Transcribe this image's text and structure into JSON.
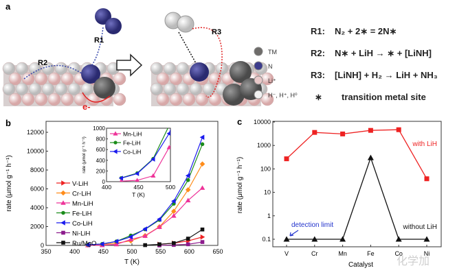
{
  "panel_a": {
    "label": "a",
    "arrow_labels": [
      "R1",
      "R2",
      "R3"
    ],
    "electron_label": "e-",
    "legend": [
      {
        "label": "TM",
        "color": "#6e6c6a"
      },
      {
        "label": "N",
        "color": "#3c3c8c"
      },
      {
        "label": "Li⁺",
        "color": "#e8c8c8"
      },
      {
        "label": "H⁻, H⁺, H⁰",
        "color": "#f2f2f2"
      }
    ],
    "reactions": [
      {
        "name": "R1:",
        "equation": "N₂ + 2∗ = 2N∗"
      },
      {
        "name": "R2:",
        "equation": "N∗ + LiH → ∗ + [LiNH]"
      },
      {
        "name": "R3:",
        "equation": "[LiNH] + H₂ → LiH + NH₃"
      },
      {
        "name": "∗",
        "equation": "transition metal site"
      }
    ]
  },
  "watermark": "化学加",
  "chart_data": [
    {
      "panel": "b",
      "type": "line",
      "xlabel": "T (K)",
      "ylabel": "rate (μmol g⁻¹ h⁻¹)",
      "xlim": [
        350,
        650
      ],
      "ylim": [
        0,
        12000
      ],
      "xticks": [
        350,
        400,
        450,
        500,
        550,
        600,
        650
      ],
      "yticks": [
        0,
        2000,
        4000,
        6000,
        8000,
        10000,
        12000
      ],
      "legend_position": "left",
      "series": [
        {
          "name": "V-LiH",
          "color": "#ee2222",
          "marker": "triangle-right",
          "x": [
            548,
            573,
            598,
            623
          ],
          "y": [
            120,
            240,
            480,
            890
          ]
        },
        {
          "name": "Cr-LiH",
          "color": "#ff8c1a",
          "marker": "diamond",
          "x": [
            423,
            448,
            473,
            498,
            523,
            548,
            573,
            598,
            623
          ],
          "y": [
            40,
            100,
            250,
            480,
            1040,
            1980,
            3620,
            5900,
            8640
          ]
        },
        {
          "name": "Mn-LiH",
          "color": "#ee3399",
          "marker": "triangle-up",
          "x": [
            423,
            448,
            473,
            498,
            523,
            548,
            573,
            598,
            623
          ],
          "y": [
            10,
            25,
            110,
            640,
            1000,
            1950,
            3140,
            4780,
            6100
          ]
        },
        {
          "name": "Fe-LiH",
          "color": "#1a8c1a",
          "marker": "circle",
          "x": [
            423,
            448,
            473,
            498,
            523,
            548,
            573,
            598,
            623
          ],
          "y": [
            70,
            160,
            430,
            1050,
            1700,
            2700,
            4420,
            6930,
            10740
          ]
        },
        {
          "name": "Co-LiH",
          "color": "#1a1aee",
          "marker": "triangle-left",
          "x": [
            423,
            448,
            473,
            498,
            523,
            548,
            573,
            598,
            623
          ],
          "y": [
            65,
            150,
            420,
            900,
            1740,
            2780,
            4700,
            7400,
            11470
          ]
        },
        {
          "name": "Ni-LiH",
          "color": "#8c1a8c",
          "marker": "square",
          "x": [
            548,
            573,
            598,
            623
          ],
          "y": [
            0,
            50,
            120,
            360
          ]
        },
        {
          "name": "Ru/MgO",
          "color": "#111111",
          "marker": "square",
          "x": [
            523,
            548,
            573,
            598,
            623
          ],
          "y": [
            30,
            120,
            240,
            720,
            1690
          ]
        }
      ],
      "inset": {
        "xlabel": "T (K)",
        "ylabel": "rate (μmol g⁻¹ h⁻¹)",
        "xlim": [
          400,
          500
        ],
        "ylim": [
          0,
          1000
        ],
        "xticks": [
          400,
          450,
          500
        ],
        "yticks": [
          0,
          200,
          400,
          600,
          800,
          1000
        ],
        "series_names": [
          "Mn-LiH",
          "Fe-LiH",
          "Co-LiH"
        ]
      }
    },
    {
      "panel": "c",
      "type": "line",
      "xlabel": "Catalyst",
      "ylabel": "rate (μmol g⁻¹ h⁻¹)",
      "yscale": "log",
      "ylim": [
        0.1,
        10000
      ],
      "yticks": [
        "0.1",
        "1",
        "10",
        "100",
        "1000",
        "10000"
      ],
      "categories": [
        "V",
        "Cr",
        "Mn",
        "Fe",
        "Co",
        "Ni"
      ],
      "series": [
        {
          "name": "with LiH",
          "color": "#ee2222",
          "marker": "square",
          "values": [
            270,
            3600,
            3100,
            4400,
            4700,
            38
          ]
        },
        {
          "name": "without LiH",
          "color": "#111111",
          "marker": "triangle-up",
          "values": [
            0.1,
            0.1,
            0.1,
            300,
            0.1,
            0.1
          ]
        }
      ],
      "annotation": {
        "text": "detection limit",
        "color": "#2233cc"
      }
    }
  ]
}
